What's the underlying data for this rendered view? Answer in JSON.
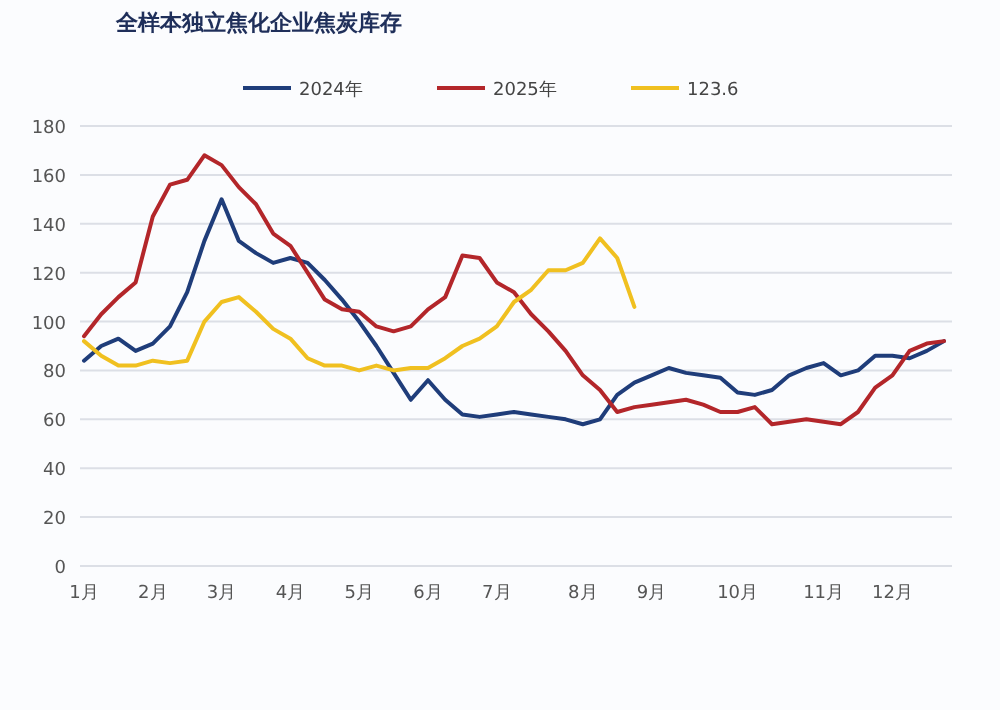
{
  "chart_data": {
    "type": "line",
    "title": "全样本独立焦化企业焦炭库存",
    "categories": [
      "1月",
      null,
      null,
      null,
      "2月",
      null,
      null,
      null,
      "3月",
      null,
      null,
      null,
      "4月",
      null,
      null,
      null,
      "5月",
      null,
      null,
      null,
      "6月",
      null,
      null,
      null,
      "7月",
      null,
      null,
      null,
      null,
      "8月",
      null,
      null,
      null,
      "9月",
      null,
      null,
      null,
      null,
      "10月",
      null,
      null,
      null,
      null,
      "11月",
      null,
      null,
      null,
      "12月",
      null,
      null,
      null
    ],
    "series": [
      {
        "name": "2024年",
        "color": "#1f3d7a",
        "values": [
          84,
          90,
          93,
          88,
          91,
          98,
          112,
          133,
          150,
          133,
          128,
          124,
          126,
          124,
          117,
          109,
          100,
          90,
          79,
          68,
          76,
          68,
          62,
          61,
          62,
          63,
          62,
          61,
          60,
          58,
          60,
          70,
          75,
          78,
          81,
          79,
          78,
          77,
          71,
          70,
          72,
          78,
          81,
          83,
          78,
          80,
          86,
          86,
          85,
          88,
          92
        ]
      },
      {
        "name": "2025年",
        "color": "#b3262a",
        "values": [
          94,
          103,
          110,
          116,
          143,
          156,
          158,
          168,
          164,
          155,
          148,
          136,
          131,
          120,
          109,
          105,
          104,
          98,
          96,
          98,
          105,
          110,
          127,
          126,
          116,
          112,
          103,
          96,
          88,
          78,
          72,
          63,
          65,
          66,
          67,
          68,
          66,
          63,
          63,
          65,
          58,
          59,
          60,
          59,
          58,
          63,
          73,
          78,
          88,
          91,
          92
        ]
      },
      {
        "name": "123.6",
        "color": "#f0c020",
        "values": [
          92,
          86,
          82,
          82,
          84,
          83,
          84,
          100,
          108,
          110,
          104,
          97,
          93,
          85,
          82,
          82,
          80,
          82,
          80,
          81,
          81,
          85,
          90,
          93,
          98,
          108,
          113,
          121,
          121,
          124,
          134,
          126,
          106,
          null,
          null,
          null,
          null,
          null,
          null,
          null,
          null,
          null,
          null,
          null,
          null,
          null,
          null,
          null,
          null,
          null,
          null
        ]
      }
    ],
    "ylim": [
      0,
      180
    ],
    "yticks": [
      0,
      20,
      40,
      60,
      80,
      100,
      120,
      140,
      160,
      180
    ],
    "grid": "y",
    "legend": "top",
    "line_style": "solid",
    "marker": "none"
  }
}
